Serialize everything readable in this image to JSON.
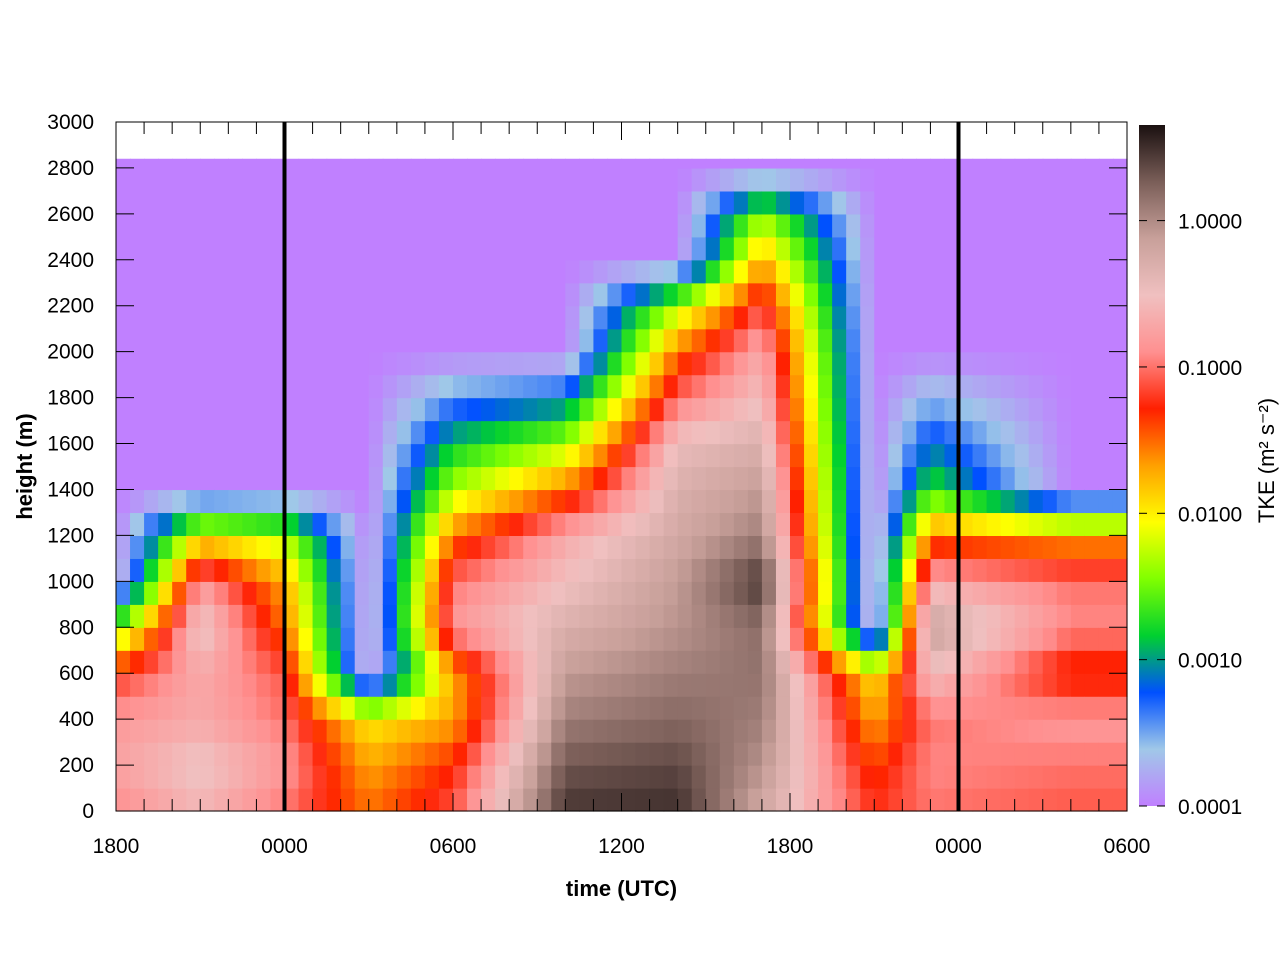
{
  "chart_data": {
    "type": "heatmap",
    "xlabel": "time (UTC)",
    "ylabel": "height (m)",
    "x_tick_labels": [
      "1800",
      "0000",
      "0600",
      "1200",
      "1800",
      "0000",
      "0600"
    ],
    "x_range_hours_from_start": [
      0,
      36
    ],
    "y_ticks": [
      0,
      200,
      400,
      600,
      800,
      1000,
      1200,
      1400,
      1600,
      1800,
      2000,
      2200,
      2400,
      2600,
      2800,
      3000
    ],
    "ylim": [
      0,
      3000
    ],
    "data_top_height": 2840,
    "midnight_lines_hours_from_start": [
      6,
      30
    ],
    "colorbar": {
      "label": "TKE (m² s⁻²)",
      "scale": "log",
      "range": [
        0.0001,
        4.5
      ],
      "tick_values": [
        0.0001,
        0.001,
        0.01,
        0.1,
        1.0
      ],
      "tick_labels": [
        "0.0001",
        "0.0010",
        "0.0100",
        "0.1000",
        "1.0000"
      ],
      "colormap": [
        "#c080ff",
        "#a0c8e8",
        "#0050ff",
        "#00d030",
        "#80ff00",
        "#ffff00",
        "#ffa000",
        "#ff2000",
        "#ff9090",
        "#f0c0c0",
        "#c8a09a",
        "#7a5e58",
        "#1a1010"
      ]
    },
    "tke_structure_m2s2": [
      {
        "time_hours": 0,
        "heights_m": [
          0,
          200,
          400,
          600,
          800,
          1000,
          1200,
          1400,
          2000,
          2400,
          2800
        ],
        "tke": [
          0.12,
          0.18,
          0.15,
          0.06,
          0.003,
          0.0001,
          0.0001,
          0.0001,
          0.0001,
          0.0001,
          0.0001
        ]
      },
      {
        "time_hours": 3,
        "heights_m": [
          0,
          200,
          400,
          600,
          800,
          1000,
          1200,
          1400,
          2000,
          2400,
          2800
        ],
        "tke": [
          0.25,
          0.35,
          0.2,
          0.2,
          0.4,
          0.15,
          0.01,
          0.0001,
          0.0001,
          0.0001,
          0.0001
        ]
      },
      {
        "time_hours": 6,
        "heights_m": [
          0,
          200,
          400,
          600,
          800,
          1000,
          1200,
          1400,
          2000,
          2400,
          2800
        ],
        "tke": [
          0.1,
          0.15,
          0.1,
          0.08,
          0.03,
          0.02,
          0.005,
          0.0001,
          0.0001,
          0.0001,
          0.0001
        ]
      },
      {
        "time_hours": 9,
        "heights_m": [
          0,
          200,
          400,
          600,
          800,
          1000,
          1200,
          1400,
          2000,
          2400,
          2800
        ],
        "tke": [
          0.03,
          0.02,
          0.01,
          0.0001,
          0.0001,
          0.0001,
          0.0001,
          0.0001,
          0.0001,
          0.0001,
          0.0001
        ]
      },
      {
        "time_hours": 12,
        "heights_m": [
          0,
          200,
          400,
          600,
          800,
          1000,
          1200,
          1400,
          2000,
          2400,
          2800
        ],
        "tke": [
          0.08,
          0.05,
          0.02,
          0.02,
          0.15,
          0.1,
          0.03,
          0.005,
          0.0001,
          0.0001,
          0.0001
        ]
      },
      {
        "time_hours": 16,
        "heights_m": [
          0,
          200,
          400,
          600,
          800,
          1000,
          1200,
          1400,
          2000,
          2400,
          2800
        ],
        "tke": [
          3.0,
          2.0,
          1.2,
          0.8,
          0.5,
          0.3,
          0.2,
          0.03,
          0.0001,
          0.0001,
          0.0001
        ]
      },
      {
        "time_hours": 20,
        "heights_m": [
          0,
          200,
          400,
          600,
          800,
          1000,
          1200,
          1400,
          1600,
          1800,
          2000,
          2200,
          2400,
          2800
        ],
        "tke": [
          3.2,
          2.4,
          1.6,
          1.2,
          0.9,
          0.8,
          0.6,
          0.5,
          0.35,
          0.1,
          0.03,
          0.005,
          0.0001,
          0.0001
        ]
      },
      {
        "time_hours": 23,
        "heights_m": [
          0,
          200,
          400,
          600,
          800,
          1000,
          1200,
          1400,
          1600,
          1800,
          2000,
          2200,
          2400,
          2600,
          2800
        ],
        "tke": [
          0.6,
          0.9,
          1.2,
          1.4,
          1.5,
          3.0,
          1.2,
          0.8,
          0.5,
          0.3,
          0.2,
          0.08,
          0.02,
          0.004,
          0.0001
        ]
      },
      {
        "time_hours": 27,
        "heights_m": [
          0,
          200,
          400,
          600,
          800,
          1000,
          1200,
          1400,
          2000,
          2400,
          2800
        ],
        "tke": [
          0.06,
          0.04,
          0.02,
          0.01,
          0.0001,
          0.0001,
          0.0001,
          0.0001,
          0.0001,
          0.0001,
          0.0001
        ]
      },
      {
        "time_hours": 29,
        "heights_m": [
          0,
          200,
          400,
          600,
          800,
          1000,
          1200,
          1400,
          2000,
          2400,
          2800
        ],
        "tke": [
          0.1,
          0.12,
          0.1,
          0.3,
          0.8,
          0.2,
          0.03,
          0.002,
          0.0001,
          0.0001,
          0.0001
        ]
      },
      {
        "time_hours": 34,
        "heights_m": [
          0,
          200,
          400,
          600,
          800,
          1000,
          1200,
          1400,
          2000,
          2400,
          2800
        ],
        "tke": [
          0.08,
          0.1,
          0.15,
          0.04,
          0.12,
          0.1,
          0.02,
          0.0001,
          0.0001,
          0.0001,
          0.0001
        ]
      }
    ]
  }
}
